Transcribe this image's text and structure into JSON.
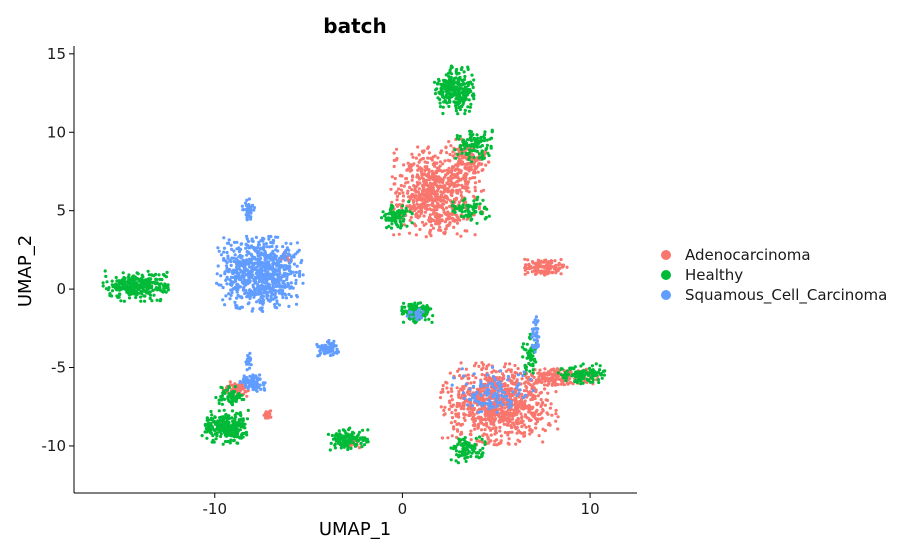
{
  "chart_data": {
    "type": "scatter",
    "title": "batch",
    "xlabel": "UMAP_1",
    "ylabel": "UMAP_2",
    "xlim": [
      -17.5,
      12.5
    ],
    "ylim": [
      -13,
      15.5
    ],
    "x_ticks": [
      -10,
      0,
      10
    ],
    "y_ticks": [
      15,
      10,
      5,
      0,
      -5,
      -10
    ],
    "x_tick_labels": [
      "-10",
      "0",
      "10"
    ],
    "y_tick_labels": [
      "15",
      "10",
      "5",
      "0",
      "-5",
      "-10"
    ],
    "grid": false,
    "legend_position": "right",
    "series": [
      {
        "name": "Adenocarcinoma",
        "color": "#F8766D",
        "clusters": [
          {
            "cx": 1.8,
            "cy": 6.2,
            "rx": 2.3,
            "ry": 2.6,
            "n": 700
          },
          {
            "cx": 3.5,
            "cy": 8.3,
            "rx": 1.0,
            "ry": 1.2,
            "n": 120
          },
          {
            "cx": 5.2,
            "cy": -7.3,
            "rx": 2.9,
            "ry": 2.4,
            "n": 900
          },
          {
            "cx": 8.5,
            "cy": -5.6,
            "rx": 1.9,
            "ry": 0.6,
            "n": 160
          },
          {
            "cx": 7.6,
            "cy": 1.4,
            "rx": 1.1,
            "ry": 0.5,
            "n": 130
          },
          {
            "cx": -8.9,
            "cy": -6.4,
            "rx": 0.8,
            "ry": 0.5,
            "n": 60
          },
          {
            "cx": -7.2,
            "cy": -8.0,
            "rx": 0.3,
            "ry": 0.3,
            "n": 20
          },
          {
            "cx": -2.6,
            "cy": -9.8,
            "rx": 0.4,
            "ry": 0.3,
            "n": 20
          },
          {
            "cx": -6.2,
            "cy": 2.0,
            "rx": 0.3,
            "ry": 0.3,
            "n": 15
          }
        ]
      },
      {
        "name": "Healthy",
        "color": "#00BA38",
        "clusters": [
          {
            "cx": 2.8,
            "cy": 12.7,
            "rx": 1.0,
            "ry": 1.4,
            "n": 260
          },
          {
            "cx": 3.8,
            "cy": 9.2,
            "rx": 1.0,
            "ry": 1.0,
            "n": 100
          },
          {
            "cx": -0.3,
            "cy": 4.7,
            "rx": 0.8,
            "ry": 0.8,
            "n": 90
          },
          {
            "cx": 3.6,
            "cy": 5.0,
            "rx": 1.0,
            "ry": 0.8,
            "n": 70
          },
          {
            "cx": -14.2,
            "cy": 0.2,
            "rx": 1.6,
            "ry": 0.9,
            "n": 280
          },
          {
            "cx": -9.4,
            "cy": -8.8,
            "rx": 1.2,
            "ry": 1.0,
            "n": 250
          },
          {
            "cx": -9.2,
            "cy": -6.8,
            "rx": 0.7,
            "ry": 0.6,
            "n": 60
          },
          {
            "cx": 0.8,
            "cy": -1.5,
            "rx": 0.8,
            "ry": 0.6,
            "n": 140
          },
          {
            "cx": -2.9,
            "cy": -9.6,
            "rx": 1.1,
            "ry": 0.7,
            "n": 130
          },
          {
            "cx": 9.6,
            "cy": -5.4,
            "rx": 1.2,
            "ry": 0.6,
            "n": 110
          },
          {
            "cx": 3.5,
            "cy": -10.3,
            "rx": 1.0,
            "ry": 0.8,
            "n": 90
          },
          {
            "cx": 6.8,
            "cy": -4.2,
            "rx": 0.4,
            "ry": 1.2,
            "n": 50
          }
        ]
      },
      {
        "name": "Squamous_Cell_Carcinoma",
        "color": "#619CFF",
        "clusters": [
          {
            "cx": -7.6,
            "cy": 1.0,
            "rx": 2.1,
            "ry": 2.2,
            "n": 750
          },
          {
            "cx": -8.2,
            "cy": 5.0,
            "rx": 0.3,
            "ry": 0.7,
            "n": 40
          },
          {
            "cx": -3.9,
            "cy": -3.8,
            "rx": 0.6,
            "ry": 0.5,
            "n": 70
          },
          {
            "cx": -8.0,
            "cy": -6.0,
            "rx": 0.7,
            "ry": 0.5,
            "n": 80
          },
          {
            "cx": -8.2,
            "cy": -4.6,
            "rx": 0.2,
            "ry": 0.6,
            "n": 20
          },
          {
            "cx": 7.1,
            "cy": -2.8,
            "rx": 0.2,
            "ry": 1.2,
            "n": 40
          },
          {
            "cx": 4.8,
            "cy": -6.6,
            "rx": 2.0,
            "ry": 1.6,
            "n": 120
          },
          {
            "cx": 0.8,
            "cy": -1.6,
            "rx": 0.5,
            "ry": 0.4,
            "n": 20
          }
        ]
      }
    ]
  }
}
